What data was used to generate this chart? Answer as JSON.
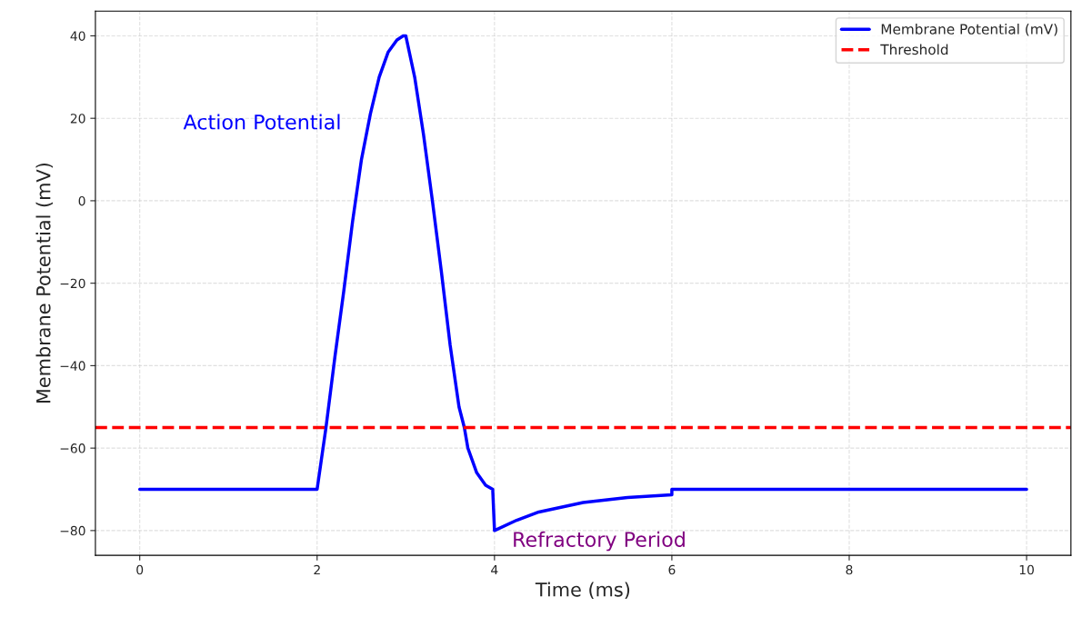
{
  "chart_data": {
    "type": "line",
    "xlabel": "Time (ms)",
    "ylabel": "Membrane Potential (mV)",
    "xlim": [
      -0.5,
      10.5
    ],
    "ylim": [
      -86,
      46
    ],
    "xticks": [
      0,
      2,
      4,
      6,
      8,
      10
    ],
    "yticks": [
      -80,
      -60,
      -40,
      -20,
      0,
      20,
      40
    ],
    "grid": true,
    "legend": "top right",
    "series": [
      {
        "name": "Membrane Potential (mV)",
        "color": "#0000ff",
        "line_style": "solid",
        "x": [
          0,
          2,
          2.1,
          2.2,
          2.3,
          2.4,
          2.5,
          2.6,
          2.7,
          2.8,
          2.9,
          2.97,
          3.0,
          3.1,
          3.2,
          3.3,
          3.4,
          3.5,
          3.6,
          3.66,
          3.7,
          3.8,
          3.9,
          3.98,
          4.0,
          4.25,
          4.5,
          5.0,
          5.5,
          6.0,
          6.0,
          10
        ],
        "values": [
          -70,
          -70,
          -55,
          -38,
          -22,
          -5,
          10,
          21,
          30,
          36,
          39,
          40,
          40,
          30,
          16,
          0,
          -17,
          -35,
          -50,
          -55,
          -60,
          -66,
          -69,
          -70,
          -80,
          -77.5,
          -75.5,
          -73.2,
          -72,
          -71.3,
          -70,
          -70
        ]
      }
    ],
    "ref_lines": [
      {
        "axis": "y",
        "value": -55,
        "label": "Threshold",
        "color": "#ff0000",
        "line_style": "dashed"
      }
    ],
    "annotations": [
      "Action Potential",
      "Refractory Period"
    ]
  }
}
